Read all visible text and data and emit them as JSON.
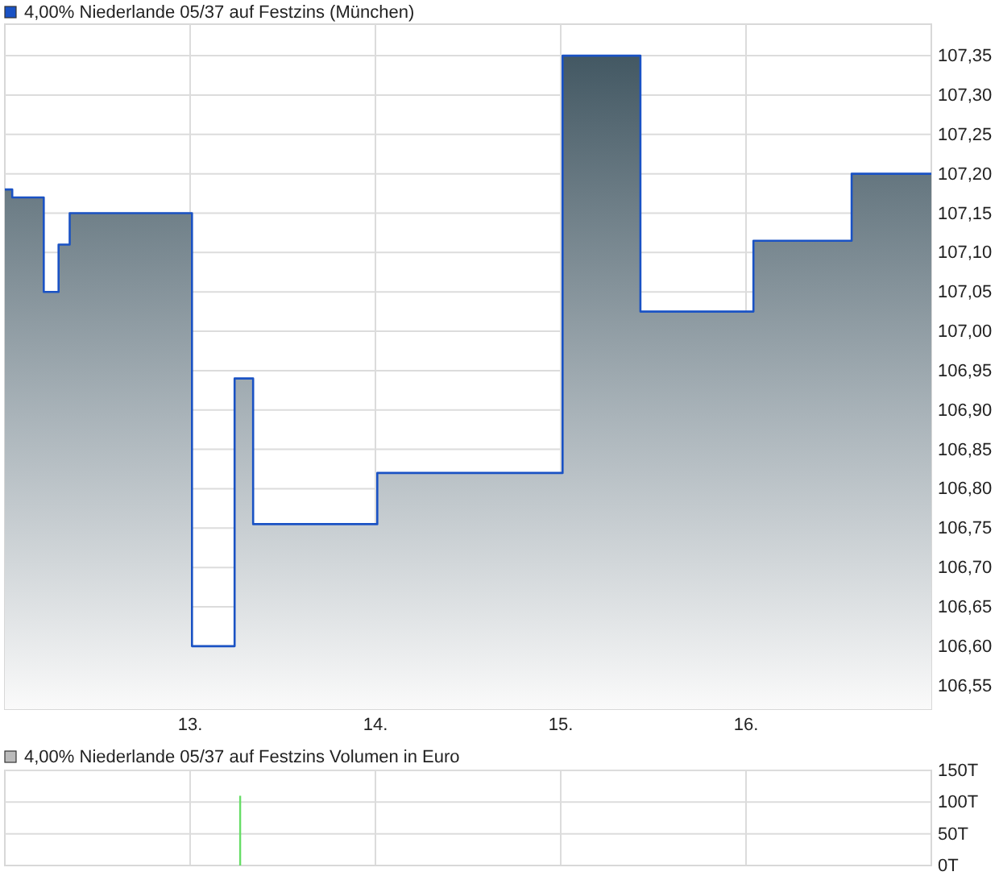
{
  "chart_data": [
    {
      "type": "area",
      "legend": "top left",
      "grid": true,
      "series": [
        {
          "name": "4,00% Niederlande 05/37 auf Festzins (München)",
          "color": "#1a52c4",
          "x": [
            12.0,
            12.04,
            12.04,
            12.21,
            12.21,
            12.29,
            12.29,
            12.35,
            12.35,
            13.01,
            13.01,
            13.24,
            13.24,
            13.34,
            13.34,
            14.01,
            14.01,
            15.01,
            15.01,
            15.43,
            15.43,
            16.04,
            16.04,
            16.57,
            16.57,
            17.0
          ],
          "values": [
            107.18,
            107.18,
            107.17,
            107.17,
            107.05,
            107.05,
            107.11,
            107.11,
            107.15,
            107.15,
            106.6,
            106.6,
            106.94,
            106.94,
            106.755,
            106.755,
            106.82,
            106.82,
            107.35,
            107.35,
            107.025,
            107.025,
            107.115,
            107.115,
            107.2,
            107.2
          ]
        }
      ],
      "xlim": [
        12,
        17
      ],
      "xticks": [
        {
          "value": 13,
          "label": "13."
        },
        {
          "value": 14,
          "label": "14."
        },
        {
          "value": 15,
          "label": "15."
        },
        {
          "value": 16,
          "label": "16."
        }
      ],
      "ylim": [
        106.52,
        107.39
      ],
      "yticks": [
        {
          "value": 106.55,
          "label": "106,55"
        },
        {
          "value": 106.6,
          "label": "106,60"
        },
        {
          "value": 106.65,
          "label": "106,65"
        },
        {
          "value": 106.7,
          "label": "106,70"
        },
        {
          "value": 106.75,
          "label": "106,75"
        },
        {
          "value": 106.8,
          "label": "106,80"
        },
        {
          "value": 106.85,
          "label": "106,85"
        },
        {
          "value": 106.9,
          "label": "106,90"
        },
        {
          "value": 106.95,
          "label": "106,95"
        },
        {
          "value": 107.0,
          "label": "107,00"
        },
        {
          "value": 107.05,
          "label": "107,05"
        },
        {
          "value": 107.1,
          "label": "107,10"
        },
        {
          "value": 107.15,
          "label": "107,15"
        },
        {
          "value": 107.2,
          "label": "107,20"
        },
        {
          "value": 107.25,
          "label": "107,25"
        },
        {
          "value": 107.3,
          "label": "107,30"
        },
        {
          "value": 107.35,
          "label": "107,35"
        }
      ]
    },
    {
      "type": "bar",
      "title": "4,00% Niederlande 05/37 auf Festzins Volumen in Euro",
      "grid": true,
      "tick_labels": "y",
      "series": [
        {
          "color": "#66dd66",
          "x": [
            13.27
          ],
          "values": [
            110
          ]
        }
      ],
      "xlim": [
        12,
        17
      ],
      "xticks": [
        {
          "value": 13,
          "label": null
        },
        {
          "value": 14,
          "label": null
        },
        {
          "value": 15,
          "label": null
        },
        {
          "value": 16,
          "label": null
        }
      ],
      "ylim": [
        0,
        150
      ],
      "yticks": [
        {
          "value": 0,
          "label": "0T"
        },
        {
          "value": 50,
          "label": "50T"
        },
        {
          "value": 100,
          "label": "100T"
        },
        {
          "value": 150,
          "label": "150T"
        }
      ]
    }
  ]
}
